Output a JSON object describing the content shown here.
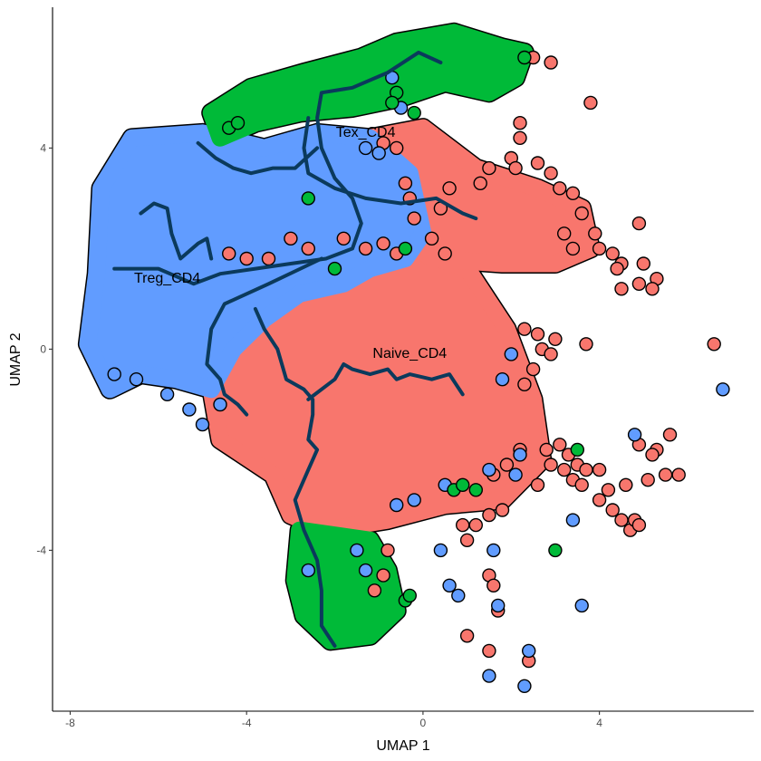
{
  "chart_data": {
    "type": "scatter",
    "title": "",
    "xlabel": "UMAP 1",
    "ylabel": "UMAP 2",
    "xlim": [
      -8.4,
      7.5
    ],
    "ylim": [
      -7.2,
      6.8
    ],
    "x_ticks": [
      -8,
      -4,
      0,
      4
    ],
    "y_ticks": [
      -4,
      0,
      4
    ],
    "x_tick_labels": [
      "-8",
      "-4",
      "0",
      "4"
    ],
    "y_tick_labels": [
      "-4",
      "0",
      "4"
    ],
    "grid": false,
    "legend": "none",
    "series": [
      {
        "cluster": "Naive_CD4",
        "color": "#F8766D",
        "label_position": [
          -0.3,
          -0.1
        ],
        "core_regions": [
          [
            [
              -3.2,
              1.6
            ],
            [
              -1.5,
              2.2
            ],
            [
              -0.3,
              2.0
            ],
            [
              1.0,
              1.6
            ],
            [
              1.9,
              0.4
            ],
            [
              2.5,
              -1.0
            ],
            [
              2.7,
              -2.2
            ],
            [
              1.8,
              -3.0
            ],
            [
              0.5,
              -3.1
            ],
            [
              -0.8,
              -3.4
            ],
            [
              -2.2,
              -3.6
            ],
            [
              -3.0,
              -3.3
            ],
            [
              -3.4,
              -2.5
            ],
            [
              -4.6,
              -1.8
            ],
            [
              -4.8,
              -0.8
            ],
            [
              -4.3,
              0.2
            ],
            [
              -3.9,
              1.0
            ]
          ],
          [
            [
              -1.2,
              4.2
            ],
            [
              0.0,
              4.4
            ],
            [
              1.2,
              3.6
            ],
            [
              2.6,
              3.2
            ],
            [
              3.6,
              2.8
            ],
            [
              3.8,
              2.0
            ],
            [
              3.0,
              1.7
            ],
            [
              1.8,
              1.7
            ],
            [
              0.2,
              1.8
            ],
            [
              -0.6,
              2.4
            ],
            [
              -1.0,
              3.3
            ]
          ]
        ],
        "outlier_points": [
          [
            2.2,
            4.5
          ],
          [
            2.2,
            4.2
          ],
          [
            2.0,
            3.8
          ],
          [
            2.6,
            3.7
          ],
          [
            2.9,
            3.5
          ],
          [
            3.1,
            3.2
          ],
          [
            3.4,
            3.1
          ],
          [
            3.6,
            2.7
          ],
          [
            3.2,
            2.3
          ],
          [
            3.4,
            2.0
          ],
          [
            3.9,
            2.3
          ],
          [
            4.0,
            2.0
          ],
          [
            4.3,
            1.9
          ],
          [
            4.5,
            1.7
          ],
          [
            4.9,
            2.5
          ],
          [
            5.0,
            1.7
          ],
          [
            5.3,
            1.4
          ],
          [
            5.2,
            1.2
          ],
          [
            4.5,
            1.2
          ],
          [
            4.9,
            1.3
          ],
          [
            4.4,
            1.6
          ],
          [
            3.8,
            4.9
          ],
          [
            2.5,
            5.8
          ],
          [
            2.9,
            5.7
          ],
          [
            2.3,
            0.4
          ],
          [
            2.6,
            0.3
          ],
          [
            2.7,
            0.0
          ],
          [
            2.9,
            -0.1
          ],
          [
            2.5,
            -0.4
          ],
          [
            2.3,
            -0.7
          ],
          [
            3.0,
            0.2
          ],
          [
            3.7,
            0.1
          ],
          [
            2.8,
            -2.0
          ],
          [
            3.1,
            -1.9
          ],
          [
            2.9,
            -2.3
          ],
          [
            3.2,
            -2.4
          ],
          [
            3.4,
            -2.6
          ],
          [
            3.5,
            -2.3
          ],
          [
            3.7,
            -2.4
          ],
          [
            3.6,
            -2.7
          ],
          [
            4.0,
            -3.0
          ],
          [
            4.3,
            -3.2
          ],
          [
            4.5,
            -3.4
          ],
          [
            4.7,
            -3.6
          ],
          [
            4.8,
            -3.4
          ],
          [
            4.9,
            -3.5
          ],
          [
            3.3,
            -2.1
          ],
          [
            1.6,
            -2.5
          ],
          [
            1.9,
            -2.3
          ],
          [
            2.2,
            -2.0
          ],
          [
            2.6,
            -2.7
          ],
          [
            1.8,
            -3.2
          ],
          [
            1.5,
            -3.3
          ],
          [
            1.2,
            -3.5
          ],
          [
            1.0,
            -3.8
          ],
          [
            0.9,
            -3.5
          ],
          [
            2.1,
            3.6
          ],
          [
            1.5,
            3.6
          ],
          [
            1.3,
            3.3
          ],
          [
            0.6,
            3.2
          ],
          [
            0.4,
            2.8
          ],
          [
            6.6,
            0.1
          ],
          [
            4.9,
            -1.9
          ],
          [
            5.3,
            -2.0
          ],
          [
            5.6,
            -1.7
          ],
          [
            5.8,
            -2.5
          ],
          [
            5.5,
            -2.5
          ],
          [
            4.6,
            -2.7
          ],
          [
            5.2,
            -2.1
          ],
          [
            5.1,
            -2.6
          ],
          [
            4.2,
            -2.8
          ],
          [
            4.0,
            -2.4
          ],
          [
            -0.8,
            -4.0
          ],
          [
            -0.9,
            -4.5
          ],
          [
            -1.1,
            -4.8
          ],
          [
            1.5,
            -4.5
          ],
          [
            1.6,
            -4.7
          ],
          [
            1.7,
            -5.2
          ],
          [
            1.0,
            -5.7
          ],
          [
            1.5,
            -6.0
          ],
          [
            2.4,
            -6.2
          ],
          [
            -0.9,
            4.1
          ],
          [
            -0.6,
            4.0
          ],
          [
            -0.4,
            3.3
          ],
          [
            -0.3,
            3.0
          ],
          [
            -0.2,
            2.6
          ],
          [
            0.2,
            2.2
          ],
          [
            0.5,
            1.9
          ],
          [
            -1.8,
            2.2
          ],
          [
            -1.3,
            2.0
          ],
          [
            -0.9,
            2.1
          ],
          [
            -0.6,
            1.9
          ],
          [
            -2.6,
            2.0
          ],
          [
            -3.0,
            2.2
          ],
          [
            -3.5,
            1.8
          ],
          [
            -4.0,
            1.8
          ],
          [
            -4.4,
            1.9
          ]
        ]
      },
      {
        "cluster": "Treg_CD4",
        "color": "#619CFF",
        "label_position": [
          -5.8,
          1.4
        ],
        "core_regions": [
          [
            [
              -6.6,
              4.2
            ],
            [
              -5.0,
              4.3
            ],
            [
              -3.6,
              4.0
            ],
            [
              -2.4,
              4.3
            ],
            [
              -1.2,
              4.2
            ],
            [
              -0.3,
              3.5
            ],
            [
              0.0,
              2.3
            ],
            [
              -0.4,
              1.8
            ],
            [
              -1.2,
              1.6
            ],
            [
              -1.8,
              1.3
            ],
            [
              -2.8,
              1.1
            ],
            [
              -3.6,
              0.6
            ],
            [
              -4.3,
              0.0
            ],
            [
              -4.8,
              -0.8
            ],
            [
              -5.6,
              -0.6
            ],
            [
              -6.4,
              -0.5
            ],
            [
              -7.1,
              -0.8
            ],
            [
              -7.6,
              0.1
            ],
            [
              -7.4,
              1.5
            ],
            [
              -7.3,
              3.2
            ]
          ]
        ],
        "outlier_points": [
          [
            -0.7,
            5.4
          ],
          [
            -0.5,
            4.8
          ],
          [
            -1.3,
            4.0
          ],
          [
            -1.0,
            3.9
          ],
          [
            -5.0,
            -1.5
          ],
          [
            -5.3,
            -1.2
          ],
          [
            -4.6,
            -1.1
          ],
          [
            -5.8,
            -0.9
          ],
          [
            -6.5,
            -0.6
          ],
          [
            -7.0,
            -0.5
          ],
          [
            1.5,
            -2.4
          ],
          [
            2.2,
            -2.1
          ],
          [
            2.1,
            -2.5
          ],
          [
            0.5,
            -2.7
          ],
          [
            -0.6,
            -3.1
          ],
          [
            -0.2,
            -3.0
          ],
          [
            1.6,
            -4.0
          ],
          [
            0.4,
            -4.0
          ],
          [
            0.6,
            -4.7
          ],
          [
            0.8,
            -4.9
          ],
          [
            1.7,
            -5.1
          ],
          [
            2.4,
            -6.0
          ],
          [
            1.5,
            -6.5
          ],
          [
            2.3,
            -6.7
          ],
          [
            3.6,
            -5.1
          ],
          [
            4.8,
            -1.7
          ],
          [
            3.4,
            -3.4
          ],
          [
            6.8,
            -0.8
          ],
          [
            2.0,
            -0.1
          ],
          [
            1.8,
            -0.6
          ],
          [
            -1.5,
            -4.0
          ],
          [
            -1.3,
            -4.4
          ],
          [
            -2.6,
            -4.4
          ]
        ]
      },
      {
        "cluster": "Tex_CD4",
        "color": "#00BA38",
        "label_position": [
          -1.3,
          4.3
        ],
        "core_regions": [
          [
            [
              -4.8,
              4.7
            ],
            [
              -3.9,
              5.2
            ],
            [
              -2.7,
              5.5
            ],
            [
              -1.4,
              5.8
            ],
            [
              -0.6,
              6.1
            ],
            [
              0.7,
              6.3
            ],
            [
              1.8,
              6.0
            ],
            [
              2.3,
              5.9
            ],
            [
              2.1,
              5.4
            ],
            [
              1.5,
              5.1
            ],
            [
              0.5,
              5.3
            ],
            [
              -0.5,
              5.0
            ],
            [
              -1.6,
              4.8
            ],
            [
              -2.8,
              4.7
            ],
            [
              -3.8,
              4.5
            ],
            [
              -4.6,
              4.2
            ]
          ],
          [
            [
              -2.8,
              -3.6
            ],
            [
              -1.2,
              -3.8
            ],
            [
              -0.8,
              -4.4
            ],
            [
              -0.6,
              -5.2
            ],
            [
              -1.2,
              -5.7
            ],
            [
              -2.1,
              -5.8
            ],
            [
              -2.7,
              -5.3
            ],
            [
              -2.9,
              -4.6
            ]
          ]
        ],
        "outlier_points": [
          [
            2.3,
            5.8
          ],
          [
            -0.6,
            5.1
          ],
          [
            -0.2,
            4.7
          ],
          [
            -0.7,
            4.9
          ],
          [
            -2.0,
            1.6
          ],
          [
            -0.4,
            2.0
          ],
          [
            -0.4,
            -5.0
          ],
          [
            -0.3,
            -4.9
          ],
          [
            0.7,
            -2.8
          ],
          [
            0.9,
            -2.7
          ],
          [
            1.2,
            -2.8
          ],
          [
            3.0,
            -4.0
          ],
          [
            3.5,
            -2.0
          ],
          [
            -4.4,
            4.4
          ],
          [
            -4.2,
            4.5
          ],
          [
            -2.6,
            3.0
          ]
        ]
      }
    ],
    "trajectory_color": "#0B3A5C",
    "trajectory_segments": [
      [
        [
          0.4,
          5.7
        ],
        [
          -0.1,
          5.9
        ],
        [
          -0.8,
          5.5
        ],
        [
          -1.6,
          5.2
        ],
        [
          -2.3,
          5.1
        ],
        [
          -2.4,
          4.6
        ],
        [
          -2.3,
          4.0
        ],
        [
          -2.0,
          3.4
        ],
        [
          -1.6,
          3.0
        ],
        [
          -1.4,
          2.5
        ],
        [
          -1.6,
          2.0
        ],
        [
          -2.2,
          1.8
        ],
        [
          -3.0,
          1.7
        ],
        [
          -3.8,
          1.6
        ],
        [
          -4.6,
          1.5
        ],
        [
          -5.2,
          1.3
        ],
        [
          -6.0,
          1.6
        ],
        [
          -7.0,
          1.6
        ]
      ],
      [
        [
          -2.6,
          4.6
        ],
        [
          -2.7,
          4.0
        ],
        [
          -2.6,
          3.5
        ],
        [
          -2.0,
          3.2
        ],
        [
          -1.3,
          3.0
        ],
        [
          -0.5,
          2.9
        ],
        [
          0.3,
          3.0
        ],
        [
          0.9,
          2.7
        ],
        [
          1.2,
          2.6
        ]
      ],
      [
        [
          -5.1,
          4.1
        ],
        [
          -4.7,
          3.8
        ],
        [
          -4.3,
          3.6
        ],
        [
          -3.9,
          3.5
        ],
        [
          -3.4,
          3.6
        ],
        [
          -2.9,
          3.6
        ],
        [
          -2.4,
          4.0
        ]
      ],
      [
        [
          -6.4,
          2.7
        ],
        [
          -6.1,
          2.9
        ],
        [
          -5.8,
          2.8
        ],
        [
          -5.7,
          2.3
        ],
        [
          -5.5,
          1.8
        ],
        [
          -5.1,
          2.1
        ],
        [
          -4.9,
          2.2
        ],
        [
          -4.8,
          1.8
        ]
      ],
      [
        [
          -2.3,
          1.8
        ],
        [
          -3.5,
          1.3
        ],
        [
          -4.5,
          0.9
        ],
        [
          -4.8,
          0.4
        ],
        [
          -4.9,
          -0.3
        ],
        [
          -4.6,
          -0.6
        ],
        [
          -4.5,
          -0.9
        ],
        [
          -4.2,
          -1.1
        ],
        [
          -4.0,
          -1.3
        ]
      ],
      [
        [
          -3.8,
          0.8
        ],
        [
          -3.6,
          0.4
        ],
        [
          -3.3,
          0.0
        ],
        [
          -3.1,
          -0.6
        ],
        [
          -2.7,
          -0.8
        ],
        [
          -2.5,
          -1.0
        ],
        [
          -2.5,
          -1.3
        ],
        [
          -2.6,
          -1.8
        ],
        [
          -2.4,
          -2.0
        ],
        [
          -2.6,
          -2.4
        ],
        [
          -2.9,
          -3.0
        ],
        [
          -2.7,
          -3.6
        ],
        [
          -2.4,
          -4.2
        ],
        [
          -2.3,
          -4.8
        ],
        [
          -2.3,
          -5.5
        ],
        [
          -2.0,
          -5.9
        ]
      ],
      [
        [
          -2.6,
          -1.0
        ],
        [
          -2.0,
          -0.6
        ],
        [
          -1.8,
          -0.3
        ],
        [
          -1.6,
          -0.4
        ],
        [
          -1.2,
          -0.5
        ],
        [
          -0.8,
          -0.4
        ],
        [
          -0.6,
          -0.6
        ],
        [
          -0.3,
          -0.5
        ],
        [
          0.2,
          -0.6
        ],
        [
          0.6,
          -0.5
        ],
        [
          0.9,
          -0.9
        ]
      ]
    ]
  }
}
